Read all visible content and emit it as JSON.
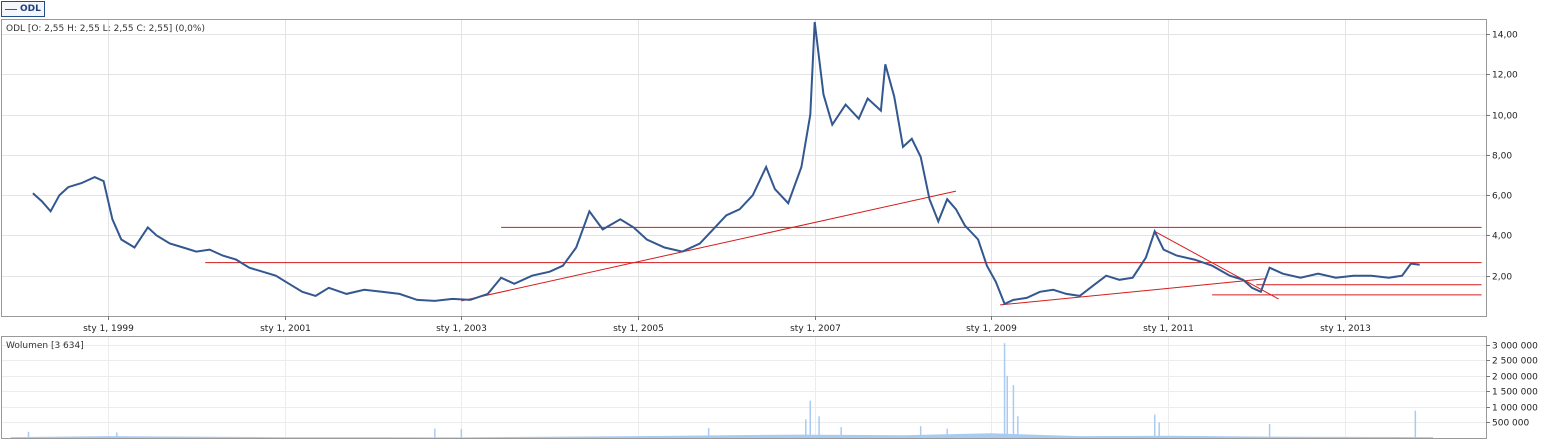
{
  "legend": {
    "symbol": "ODL"
  },
  "chart_data": [
    {
      "type": "line",
      "title": "ODL [O: 2,55  H: 2,55  L: 2,55  C: 2,55] (0,0%)",
      "x_ticks": [
        {
          "year": 1999,
          "label": "sty 1, 1999"
        },
        {
          "year": 2001,
          "label": "sty 1, 2001"
        },
        {
          "year": 2003,
          "label": "sty 1, 2003"
        },
        {
          "year": 2005,
          "label": "sty 1, 2005"
        },
        {
          "year": 2007,
          "label": "sty 1, 2007"
        },
        {
          "year": 2009,
          "label": "sty 1, 2009"
        },
        {
          "year": 2011,
          "label": "sty 1, 2011"
        },
        {
          "year": 2013,
          "label": "sty 1, 2013"
        }
      ],
      "y_ticks": [
        {
          "value": 2,
          "label": "2,00"
        },
        {
          "value": 4,
          "label": "4,00"
        },
        {
          "value": 6,
          "label": "6,00"
        },
        {
          "value": 8,
          "label": "8,00"
        },
        {
          "value": 10,
          "label": "10,00"
        },
        {
          "value": 12,
          "label": "12,00"
        },
        {
          "value": 14,
          "label": "14,00"
        }
      ],
      "xlim": [
        1997.8,
        2014.6
      ],
      "ylim": [
        0,
        14.7
      ],
      "grid": true,
      "series": [
        {
          "name": "ODL",
          "color": "#33578f",
          "points": [
            [
              1998.15,
              6.1
            ],
            [
              1998.25,
              5.7
            ],
            [
              1998.35,
              5.2
            ],
            [
              1998.45,
              6.0
            ],
            [
              1998.55,
              6.4
            ],
            [
              1998.7,
              6.6
            ],
            [
              1998.85,
              6.9
            ],
            [
              1998.95,
              6.7
            ],
            [
              1999.05,
              4.8
            ],
            [
              1999.15,
              3.8
            ],
            [
              1999.3,
              3.4
            ],
            [
              1999.45,
              4.4
            ],
            [
              1999.55,
              4.0
            ],
            [
              1999.7,
              3.6
            ],
            [
              1999.85,
              3.4
            ],
            [
              2000.0,
              3.2
            ],
            [
              2000.15,
              3.3
            ],
            [
              2000.3,
              3.0
            ],
            [
              2000.45,
              2.8
            ],
            [
              2000.6,
              2.4
            ],
            [
              2000.75,
              2.2
            ],
            [
              2000.9,
              2.0
            ],
            [
              2001.05,
              1.6
            ],
            [
              2001.2,
              1.2
            ],
            [
              2001.35,
              1.0
            ],
            [
              2001.5,
              1.4
            ],
            [
              2001.7,
              1.1
            ],
            [
              2001.9,
              1.3
            ],
            [
              2002.1,
              1.2
            ],
            [
              2002.3,
              1.1
            ],
            [
              2002.5,
              0.8
            ],
            [
              2002.7,
              0.75
            ],
            [
              2002.9,
              0.85
            ],
            [
              2003.1,
              0.8
            ],
            [
              2003.3,
              1.1
            ],
            [
              2003.45,
              1.9
            ],
            [
              2003.6,
              1.6
            ],
            [
              2003.8,
              2.0
            ],
            [
              2004.0,
              2.2
            ],
            [
              2004.15,
              2.5
            ],
            [
              2004.3,
              3.4
            ],
            [
              2004.45,
              5.2
            ],
            [
              2004.6,
              4.3
            ],
            [
              2004.8,
              4.8
            ],
            [
              2004.95,
              4.4
            ],
            [
              2005.1,
              3.8
            ],
            [
              2005.3,
              3.4
            ],
            [
              2005.5,
              3.2
            ],
            [
              2005.7,
              3.6
            ],
            [
              2005.85,
              4.3
            ],
            [
              2006.0,
              5.0
            ],
            [
              2006.15,
              5.3
            ],
            [
              2006.3,
              6.0
            ],
            [
              2006.45,
              7.4
            ],
            [
              2006.55,
              6.3
            ],
            [
              2006.7,
              5.6
            ],
            [
              2006.85,
              7.4
            ],
            [
              2006.95,
              10.0
            ],
            [
              2007.0,
              14.6
            ],
            [
              2007.1,
              11.0
            ],
            [
              2007.2,
              9.5
            ],
            [
              2007.35,
              10.5
            ],
            [
              2007.5,
              9.8
            ],
            [
              2007.6,
              10.8
            ],
            [
              2007.75,
              10.2
            ],
            [
              2007.8,
              12.5
            ],
            [
              2007.9,
              10.9
            ],
            [
              2008.0,
              8.4
            ],
            [
              2008.1,
              8.8
            ],
            [
              2008.2,
              7.9
            ],
            [
              2008.3,
              5.8
            ],
            [
              2008.4,
              4.7
            ],
            [
              2008.5,
              5.8
            ],
            [
              2008.6,
              5.3
            ],
            [
              2008.7,
              4.5
            ],
            [
              2008.85,
              3.8
            ],
            [
              2008.95,
              2.5
            ],
            [
              2009.05,
              1.7
            ],
            [
              2009.15,
              0.6
            ],
            [
              2009.25,
              0.8
            ],
            [
              2009.4,
              0.9
            ],
            [
              2009.55,
              1.2
            ],
            [
              2009.7,
              1.3
            ],
            [
              2009.85,
              1.1
            ],
            [
              2010.0,
              1.0
            ],
            [
              2010.15,
              1.5
            ],
            [
              2010.3,
              2.0
            ],
            [
              2010.45,
              1.8
            ],
            [
              2010.6,
              1.9
            ],
            [
              2010.75,
              2.9
            ],
            [
              2010.85,
              4.2
            ],
            [
              2010.95,
              3.3
            ],
            [
              2011.1,
              3.0
            ],
            [
              2011.3,
              2.8
            ],
            [
              2011.5,
              2.5
            ],
            [
              2011.7,
              2.0
            ],
            [
              2011.85,
              1.8
            ],
            [
              2011.95,
              1.4
            ],
            [
              2012.05,
              1.2
            ],
            [
              2012.15,
              2.4
            ],
            [
              2012.3,
              2.1
            ],
            [
              2012.5,
              1.9
            ],
            [
              2012.7,
              2.1
            ],
            [
              2012.9,
              1.9
            ],
            [
              2013.1,
              2.0
            ],
            [
              2013.3,
              2.0
            ],
            [
              2013.5,
              1.9
            ],
            [
              2013.65,
              2.0
            ],
            [
              2013.75,
              2.6
            ],
            [
              2013.85,
              2.55
            ]
          ]
        }
      ],
      "trendlines": {
        "color": "#d41c1c",
        "lines": [
          {
            "from": [
              2003.45,
              4.4
            ],
            "to": [
              2014.55,
              4.4
            ]
          },
          {
            "from": [
              2000.1,
              2.65
            ],
            "to": [
              2014.55,
              2.65
            ]
          },
          {
            "from": [
              2003.0,
              0.75
            ],
            "to": [
              2008.6,
              6.2
            ]
          },
          {
            "from": [
              2009.1,
              0.55
            ],
            "to": [
              2012.1,
              1.85
            ]
          },
          {
            "from": [
              2010.85,
              4.2
            ],
            "to": [
              2012.25,
              0.85
            ]
          },
          {
            "from": [
              2012.0,
              1.55
            ],
            "to": [
              2014.55,
              1.55
            ]
          },
          {
            "from": [
              2011.5,
              1.05
            ],
            "to": [
              2014.55,
              1.05
            ]
          }
        ]
      }
    },
    {
      "type": "bar",
      "title": "Wolumen [3 634]",
      "y_ticks": [
        {
          "value": 500000,
          "label": "500 000"
        },
        {
          "value": 1000000,
          "label": "1 000 000"
        },
        {
          "value": 1500000,
          "label": "1 500 000"
        },
        {
          "value": 2000000,
          "label": "2 000 000"
        },
        {
          "value": 2500000,
          "label": "2 500 000"
        },
        {
          "value": 3000000,
          "label": "3 000 000"
        }
      ],
      "ylim": [
        0,
        3250000
      ],
      "color": "#a9cbf2",
      "base_level": [
        [
          1997.9,
          30000
        ],
        [
          1999.0,
          60000
        ],
        [
          2001.0,
          25000
        ],
        [
          2003.0,
          20000
        ],
        [
          2005.0,
          60000
        ],
        [
          2006.8,
          110000
        ],
        [
          2008.0,
          90000
        ],
        [
          2009.0,
          150000
        ],
        [
          2010.0,
          60000
        ],
        [
          2011.0,
          70000
        ],
        [
          2012.5,
          40000
        ],
        [
          2014.0,
          30000
        ]
      ],
      "spikes": [
        [
          1998.1,
          200000
        ],
        [
          1999.1,
          180000
        ],
        [
          2002.7,
          300000
        ],
        [
          2003.0,
          290000
        ],
        [
          2005.8,
          320000
        ],
        [
          2006.9,
          600000
        ],
        [
          2006.95,
          1200000
        ],
        [
          2007.05,
          700000
        ],
        [
          2007.3,
          350000
        ],
        [
          2008.2,
          380000
        ],
        [
          2008.5,
          300000
        ],
        [
          2009.15,
          3050000
        ],
        [
          2009.18,
          2000000
        ],
        [
          2009.25,
          1700000
        ],
        [
          2009.3,
          700000
        ],
        [
          2010.85,
          750000
        ],
        [
          2010.9,
          500000
        ],
        [
          2012.15,
          450000
        ],
        [
          2013.8,
          880000
        ]
      ]
    }
  ]
}
